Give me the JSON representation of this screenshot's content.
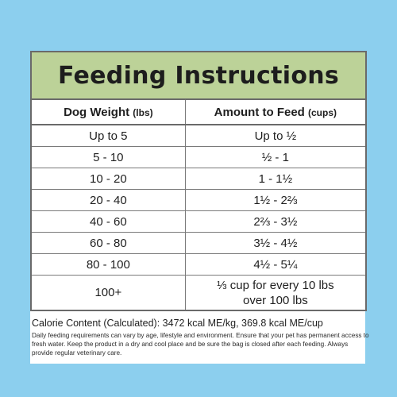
{
  "title": "Feeding Instructions",
  "columns": {
    "weight": "Dog Weight",
    "weight_unit": "(lbs)",
    "amount": "Amount to Feed",
    "amount_unit": "(cups)"
  },
  "rows": [
    {
      "weight": "Up to  5",
      "amount": "Up  to  ½"
    },
    {
      "weight": "5  -  10",
      "amount": "½   -   1"
    },
    {
      "weight": "10  -  20",
      "amount": "1   -  1½"
    },
    {
      "weight": "20  -  40",
      "amount": "1½  -  2⅔"
    },
    {
      "weight": "40  -  60",
      "amount": "2⅔  -  3½"
    },
    {
      "weight": "60  -  80",
      "amount": "3½  -  4½"
    },
    {
      "weight": "80  - 100",
      "amount": "4½  -  5¼"
    },
    {
      "weight": "100+",
      "amount_line1": "⅓ cup for every 10 lbs",
      "amount_line2": "over 100 lbs"
    }
  ],
  "calorie_content": "Calorie Content (Calculated): 3472 kcal ME/kg, 369.8 kcal ME/cup",
  "fineprint": "Daily feeding requirements can vary by age, lifestyle and environment. Ensure that your pet has permanent access to fresh water. Keep the product in a dry and cool place and be sure the bag is closed after each feeding. Always provide regular veterinary care."
}
